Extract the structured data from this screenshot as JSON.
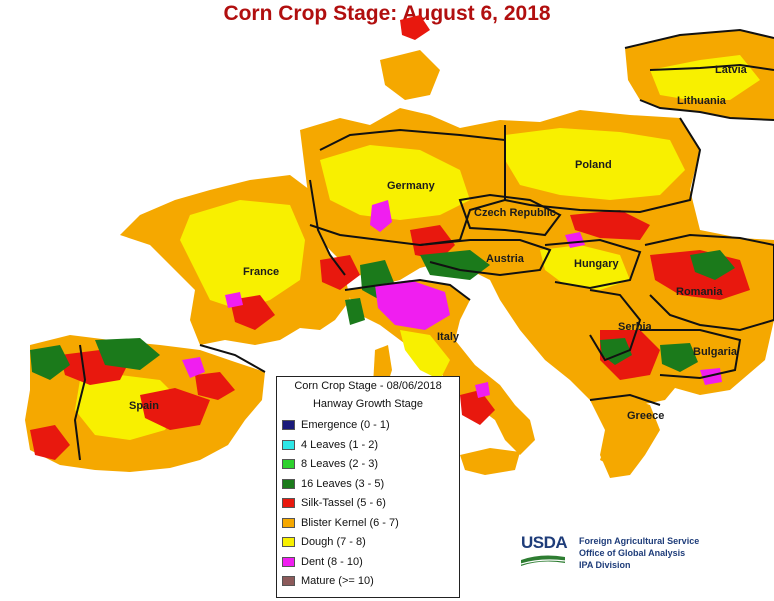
{
  "title": "Corn Crop Stage: August 6, 2018",
  "colors": {
    "emergence": "#1a1a7a",
    "four_leaves": "#2ee6e6",
    "eight_leaves": "#2dd12d",
    "sixteen_leaves": "#1b7a1b",
    "silk_tassel": "#e8180e",
    "blister_kernel": "#f5a800",
    "dough": "#f8f000",
    "dent": "#f01ef0",
    "mature": "#8c5a5a",
    "title": "#b10f0f",
    "usda_blue": "#1f3d7a",
    "usda_green": "#2e7d32"
  },
  "country_labels": {
    "latvia": "Latvia",
    "lithuania": "Lithuania",
    "poland": "Poland",
    "germany": "Germany",
    "czech": "Czech Republic",
    "austria": "Austria",
    "hungary": "Hungary",
    "romania": "Romania",
    "france": "France",
    "italy": "Italy",
    "serbia": "Serbia",
    "bulgaria": "Bulgaria",
    "spain": "Spain",
    "greece": "Greece"
  },
  "legend": {
    "title": "Corn Crop Stage - 08/06/2018",
    "subtitle": "Hanway Growth Stage",
    "items": [
      {
        "label": "Emergence (0 - 1)",
        "color": "#1a1a7a"
      },
      {
        "label": "4 Leaves (1 - 2)",
        "color": "#2ee6e6"
      },
      {
        "label": "8 Leaves (2 - 3)",
        "color": "#2dd12d"
      },
      {
        "label": "16 Leaves (3 - 5)",
        "color": "#1b7a1b"
      },
      {
        "label": "Silk-Tassel (5 - 6)",
        "color": "#e8180e"
      },
      {
        "label": "Blister Kernel (6 - 7)",
        "color": "#f5a800"
      },
      {
        "label": "Dough (7 - 8)",
        "color": "#f8f000"
      },
      {
        "label": "Dent (8 - 10)",
        "color": "#f01ef0"
      },
      {
        "label": "Mature (>= 10)",
        "color": "#8c5a5a"
      }
    ]
  },
  "usda": {
    "logo_text": "USDA",
    "line1": "Foreign Agricultural Service",
    "line2": "Office of Global Analysis",
    "line3": "IPA Division"
  }
}
